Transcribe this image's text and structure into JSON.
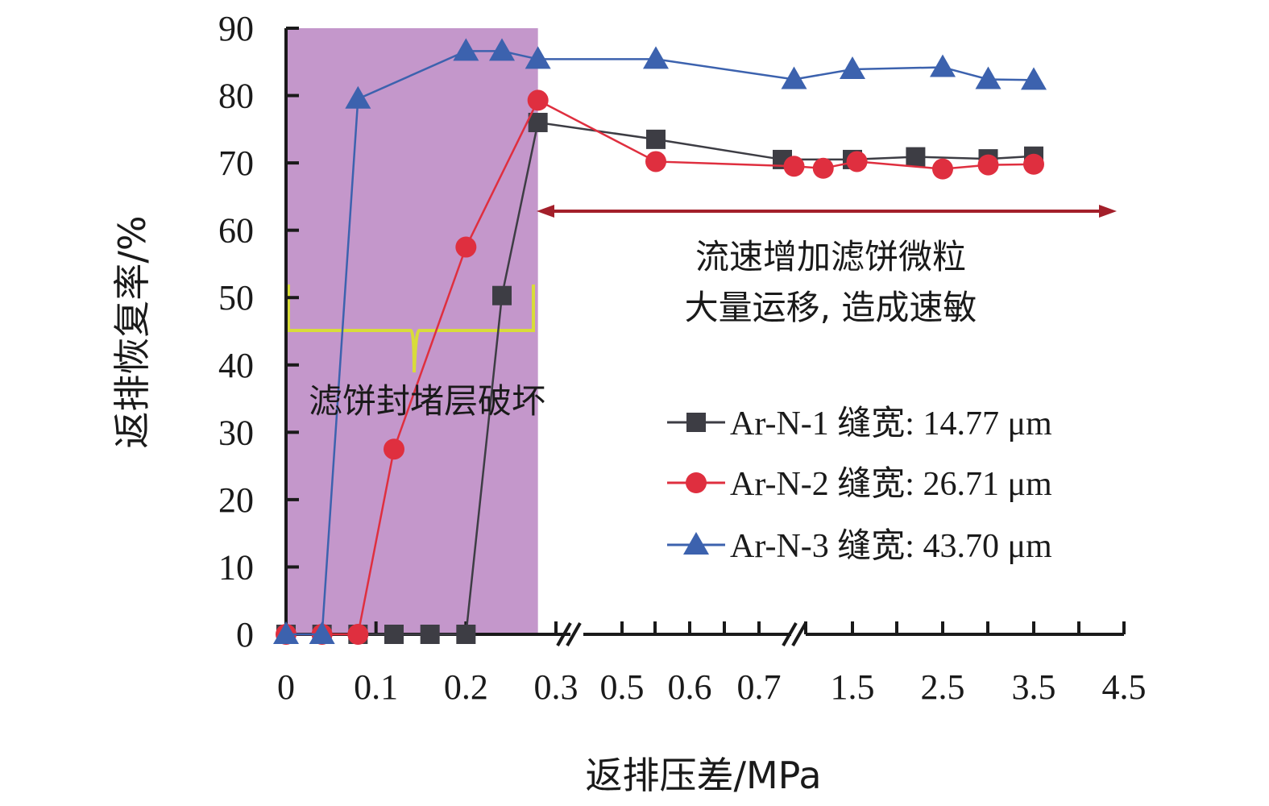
{
  "chart_data": {
    "type": "line",
    "xlabel": "返排压差/MPa",
    "ylabel": "返排恢复率/%",
    "ylim": [
      0,
      90
    ],
    "y_ticks": [
      "0",
      "10",
      "20",
      "30",
      "40",
      "50",
      "60",
      "70",
      "80",
      "90"
    ],
    "x_ticks": [
      "0",
      "0.1",
      "0.2",
      "0.3",
      "0.5",
      "0.6",
      "0.7",
      "1.5",
      "2.5",
      "3.5",
      "4.5"
    ],
    "x_axis_breaks": [
      "0.3-0.5",
      "0.7-1.5"
    ],
    "grid": false,
    "legend_position": "bottom-right",
    "shaded_region": {
      "x_range": [
        0,
        0.28
      ],
      "color": "#c497cb"
    },
    "annotations": [
      {
        "id": "damage",
        "lines": [
          "滤饼封堵层破坏"
        ],
        "brace_color": "#d8dc3a"
      },
      {
        "id": "velocity",
        "lines": [
          "流速增加滤饼微粒",
          "大量运移, 造成速敏"
        ],
        "arrow_color": "#a31f2a"
      }
    ],
    "series": [
      {
        "name": "Ar-N-1 缝宽: 14.77 μm",
        "color": "#3d3d44",
        "marker": "square",
        "points": [
          [
            0,
            0
          ],
          [
            0.04,
            0
          ],
          [
            0.08,
            0
          ],
          [
            0.12,
            0
          ],
          [
            0.16,
            0
          ],
          [
            0.2,
            0
          ],
          [
            0.24,
            50.3
          ],
          [
            0.28,
            76
          ],
          [
            0.55,
            73.5
          ],
          [
            0.9,
            70.5
          ],
          [
            1.5,
            70.5
          ],
          [
            2.2,
            70.9
          ],
          [
            3.0,
            70.6
          ],
          [
            3.5,
            71
          ]
        ]
      },
      {
        "name": "Ar-N-2 缝宽: 26.71 μm",
        "color": "#df2f3f",
        "marker": "circle",
        "points": [
          [
            0,
            0
          ],
          [
            0.04,
            0
          ],
          [
            0.08,
            0
          ],
          [
            0.12,
            27.5
          ],
          [
            0.2,
            57.5
          ],
          [
            0.28,
            79.3
          ],
          [
            0.55,
            70.2
          ],
          [
            1.0,
            69.5
          ],
          [
            1.25,
            69.2
          ],
          [
            1.55,
            70.2
          ],
          [
            2.5,
            69.1
          ],
          [
            3.0,
            69.7
          ],
          [
            3.5,
            69.8
          ]
        ]
      },
      {
        "name": "Ar-N-3 缝宽: 43.70 μm",
        "color": "#3c62ae",
        "marker": "triangle",
        "points": [
          [
            0,
            0
          ],
          [
            0.04,
            0
          ],
          [
            0.08,
            79.5
          ],
          [
            0.2,
            86.6
          ],
          [
            0.24,
            86.6
          ],
          [
            0.28,
            85.4
          ],
          [
            0.55,
            85.4
          ],
          [
            1.0,
            82.4
          ],
          [
            1.5,
            83.9
          ],
          [
            2.5,
            84.2
          ],
          [
            3.0,
            82.4
          ],
          [
            3.5,
            82.3
          ]
        ]
      }
    ]
  }
}
